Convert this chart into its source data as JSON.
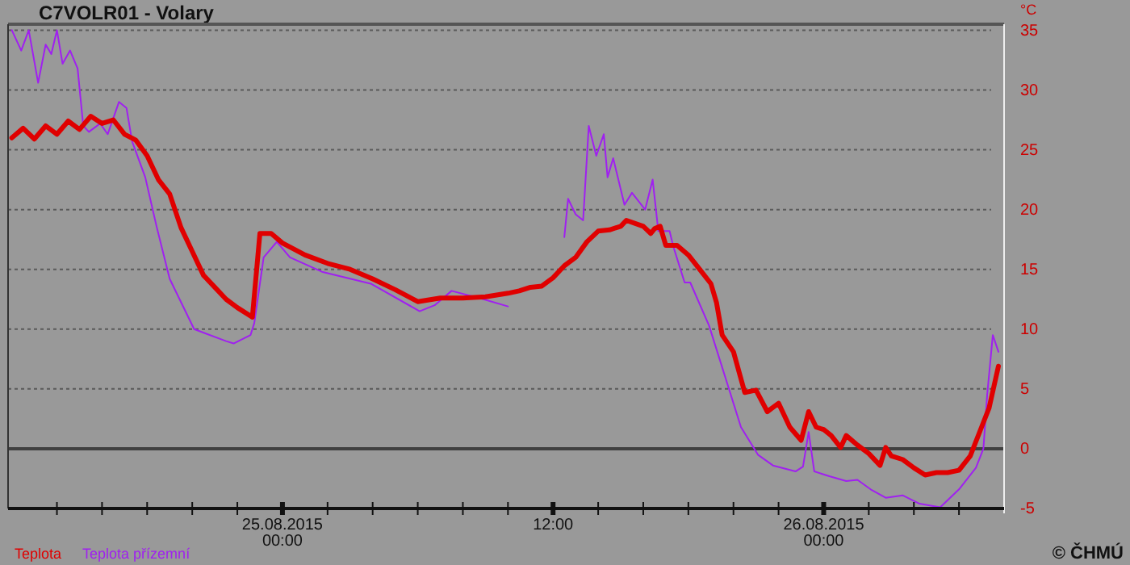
{
  "chart_data": {
    "type": "line",
    "title": "C7VOLR01 - Volary",
    "ylabel": "°C",
    "xlim": [
      "2015-08-24T11:50",
      "2015-08-26T08:00"
    ],
    "xticks": [
      {
        "value": "2015-08-24T14:00",
        "label": null
      },
      {
        "value": "2015-08-24T16:00",
        "label": null
      },
      {
        "value": "2015-08-24T18:00",
        "label": null
      },
      {
        "value": "2015-08-24T20:00",
        "label": null
      },
      {
        "value": "2015-08-24T22:00",
        "label": null
      },
      {
        "value": "2015-08-25T00:00",
        "label": "25.08.2015\n00:00"
      },
      {
        "value": "2015-08-25T02:00",
        "label": null
      },
      {
        "value": "2015-08-25T04:00",
        "label": null
      },
      {
        "value": "2015-08-25T06:00",
        "label": null
      },
      {
        "value": "2015-08-25T08:00",
        "label": null
      },
      {
        "value": "2015-08-25T10:00",
        "label": null
      },
      {
        "value": "2015-08-25T12:00",
        "label": "12:00"
      },
      {
        "value": "2015-08-25T14:00",
        "label": null
      },
      {
        "value": "2015-08-25T16:00",
        "label": null
      },
      {
        "value": "2015-08-25T18:00",
        "label": null
      },
      {
        "value": "2015-08-25T20:00",
        "label": null
      },
      {
        "value": "2015-08-25T22:00",
        "label": null
      },
      {
        "value": "2015-08-26T00:00",
        "label": "26.08.2015\n00:00"
      },
      {
        "value": "2015-08-26T02:00",
        "label": null
      },
      {
        "value": "2015-08-26T04:00",
        "label": null
      },
      {
        "value": "2015-08-26T06:00",
        "label": null
      }
    ],
    "ylim": [
      -5,
      35.5
    ],
    "yticks": [
      -5,
      0,
      5,
      10,
      15,
      20,
      25,
      30,
      35
    ],
    "grid": "y",
    "legend": "bottom left",
    "ref_lines": [
      {
        "axis": "y",
        "value": 0,
        "color": "#404040"
      }
    ],
    "annotations": [
      "© ČHMÚ"
    ],
    "series": [
      {
        "name": "Teplota přízemní",
        "color": "#a020f0",
        "x": [
          "2015-08-24T12:00",
          "2015-08-24T12:25",
          "2015-08-24T12:45",
          "2015-08-24T13:10",
          "2015-08-24T13:30",
          "2015-08-24T13:45",
          "2015-08-24T14:00",
          "2015-08-24T14:15",
          "2015-08-24T14:35",
          "2015-08-24T14:55",
          "2015-08-24T15:10",
          "2015-08-24T15:25",
          "2015-08-24T15:55",
          "2015-08-24T16:15",
          "2015-08-24T16:45",
          "2015-08-24T17:05",
          "2015-08-24T17:20",
          "2015-08-24T17:55",
          "2015-08-24T18:25",
          "2015-08-24T19:00",
          "2015-08-24T20:05",
          "2015-08-24T21:30",
          "2015-08-24T21:50",
          "2015-08-24T22:35",
          "2015-08-24T22:45",
          "2015-08-24T23:10",
          "2015-08-24T23:45",
          "2015-08-25T00:20",
          "2015-08-25T01:45",
          "2015-08-25T03:55",
          "2015-08-25T06:05",
          "2015-08-25T06:45",
          "2015-08-25T07:30",
          "2015-08-25T08:55",
          "2015-08-25T10:00",
          "2015-08-25T10:45",
          "2015-08-25T11:45",
          "2015-08-25T12:00",
          "2015-08-25T12:30",
          "2015-08-25T12:40",
          "2015-08-25T13:00",
          "2015-08-25T13:20",
          "2015-08-25T13:35",
          "2015-08-25T13:55",
          "2015-08-25T14:15",
          "2015-08-25T14:25",
          "2015-08-25T14:40",
          "2015-08-25T15:10",
          "2015-08-25T15:30",
          "2015-08-25T16:05",
          "2015-08-25T16:25",
          "2015-08-25T16:40",
          "2015-08-25T17:10",
          "2015-08-25T17:20",
          "2015-08-25T17:50",
          "2015-08-25T18:05",
          "2015-08-25T18:55",
          "2015-08-25T19:40",
          "2015-08-25T20:20",
          "2015-08-25T21:05",
          "2015-08-25T21:45",
          "2015-08-25T22:45",
          "2015-08-25T23:05",
          "2015-08-25T23:20",
          "2015-08-25T23:35",
          "2015-08-26T00:15",
          "2015-08-26T01:00",
          "2015-08-26T01:30",
          "2015-08-26T02:05",
          "2015-08-26T02:45",
          "2015-08-26T03:30",
          "2015-08-26T04:15",
          "2015-08-26T05:10",
          "2015-08-26T06:00",
          "2015-08-26T06:45",
          "2015-08-26T07:05",
          "2015-08-26T07:15",
          "2015-08-26T07:30",
          "2015-08-26T07:45"
        ],
        "values": [
          35,
          33.3,
          35,
          30.6,
          33.8,
          33,
          35,
          32.2,
          33.3,
          31.8,
          27,
          26.5,
          27.2,
          26.3,
          29,
          28.5,
          25.7,
          22.7,
          18.6,
          14.2,
          10,
          9,
          8.8,
          9.5,
          10.5,
          16,
          17.3,
          16,
          14.8,
          13.8,
          11.5,
          12,
          13.2,
          12.5,
          11.9,
          null,
          null,
          null,
          17.7,
          20.9,
          19.6,
          19.1,
          27,
          24.5,
          26.3,
          22.7,
          24.3,
          20.4,
          21.4,
          20,
          22.5,
          18.2,
          18.2,
          16.9,
          13.9,
          13.9,
          10.3,
          5.8,
          1.8,
          -0.5,
          -1.4,
          -1.9,
          -1.5,
          1.4,
          -1.9,
          -2.3,
          -2.7,
          -2.6,
          -3.4,
          -4.1,
          -3.9,
          -4.6,
          -4.9,
          -3.4,
          -1.6,
          0,
          4.5,
          9.5,
          8.1
        ]
      },
      {
        "name": "Teplota",
        "color": "#e00000",
        "x": [
          "2015-08-24T12:00",
          "2015-08-24T12:30",
          "2015-08-24T13:00",
          "2015-08-24T13:30",
          "2015-08-24T14:00",
          "2015-08-24T14:30",
          "2015-08-24T15:00",
          "2015-08-24T15:30",
          "2015-08-24T16:00",
          "2015-08-24T16:30",
          "2015-08-24T17:00",
          "2015-08-24T17:30",
          "2015-08-24T18:00",
          "2015-08-24T18:30",
          "2015-08-24T19:00",
          "2015-08-24T19:30",
          "2015-08-24T20:00",
          "2015-08-24T20:30",
          "2015-08-24T21:00",
          "2015-08-24T21:30",
          "2015-08-24T22:00",
          "2015-08-24T22:30",
          "2015-08-24T22:40",
          "2015-08-24T23:00",
          "2015-08-24T23:30",
          "2015-08-25T00:00",
          "2015-08-25T01:00",
          "2015-08-25T02:00",
          "2015-08-25T03:00",
          "2015-08-25T04:00",
          "2015-08-25T05:00",
          "2015-08-25T06:00",
          "2015-08-25T07:00",
          "2015-08-25T08:00",
          "2015-08-25T09:00",
          "2015-08-25T10:00",
          "2015-08-25T10:30",
          "2015-08-25T11:00",
          "2015-08-25T11:30",
          "2015-08-25T12:00",
          "2015-08-25T12:30",
          "2015-08-25T13:00",
          "2015-08-25T13:30",
          "2015-08-25T14:00",
          "2015-08-25T14:30",
          "2015-08-25T15:00",
          "2015-08-25T15:15",
          "2015-08-25T16:00",
          "2015-08-25T16:20",
          "2015-08-25T16:30",
          "2015-08-25T16:45",
          "2015-08-25T17:00",
          "2015-08-25T17:30",
          "2015-08-25T18:00",
          "2015-08-25T18:30",
          "2015-08-25T19:00",
          "2015-08-25T19:15",
          "2015-08-25T19:30",
          "2015-08-25T20:00",
          "2015-08-25T20:30",
          "2015-08-25T21:00",
          "2015-08-25T21:30",
          "2015-08-25T22:00",
          "2015-08-25T22:30",
          "2015-08-25T23:00",
          "2015-08-25T23:20",
          "2015-08-25T23:40",
          "2015-08-26T00:00",
          "2015-08-26T00:20",
          "2015-08-26T00:45",
          "2015-08-26T01:00",
          "2015-08-26T01:30",
          "2015-08-26T02:00",
          "2015-08-26T02:30",
          "2015-08-26T02:45",
          "2015-08-26T03:00",
          "2015-08-26T03:30",
          "2015-08-26T04:00",
          "2015-08-26T04:30",
          "2015-08-26T05:00",
          "2015-08-26T05:30",
          "2015-08-26T06:00",
          "2015-08-26T06:30",
          "2015-08-26T07:00",
          "2015-08-26T07:20",
          "2015-08-26T07:45"
        ],
        "values": [
          26,
          26.8,
          25.9,
          27,
          26.3,
          27.4,
          26.7,
          27.8,
          27.2,
          27.5,
          26.3,
          25.8,
          24.5,
          22.5,
          21.3,
          18.5,
          16.5,
          14.5,
          13.5,
          12.5,
          11.8,
          11.2,
          11,
          18,
          18,
          17.2,
          16.2,
          15.5,
          15,
          14.2,
          13.3,
          12.3,
          12.6,
          12.6,
          12.7,
          13,
          13.2,
          13.5,
          13.6,
          14.3,
          15.3,
          16,
          17.3,
          18.2,
          18.3,
          18.6,
          19.1,
          18.6,
          18,
          18.4,
          18.6,
          17,
          17,
          16.2,
          15,
          13.8,
          12.2,
          9.5,
          8.1,
          4.7,
          4.9,
          3.1,
          3.8,
          1.8,
          0.7,
          3.1,
          1.8,
          1.6,
          1.1,
          0.1,
          1.1,
          0.3,
          -0.4,
          -1.4,
          0.1,
          -0.6,
          -0.9,
          -1.6,
          -2.2,
          -2,
          -2,
          -1.8,
          -0.6,
          1.8,
          3.4,
          6.9
        ]
      }
    ]
  }
}
